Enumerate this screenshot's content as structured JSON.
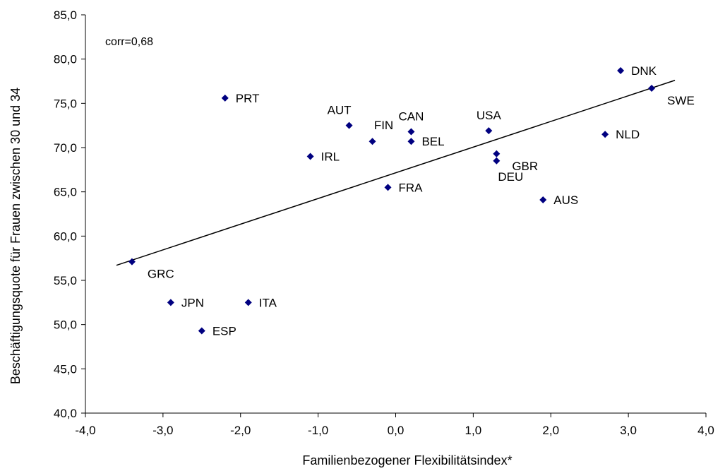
{
  "chart_data": {
    "type": "scatter",
    "xlabel": "Familienbezogener Flexibilitätsindex*",
    "ylabel": "Beschäftigungsquote für Frauen zwischen 30 und 34",
    "xlim": [
      -4.0,
      4.0
    ],
    "ylim": [
      40.0,
      85.0
    ],
    "x_ticks": [
      -4.0,
      -3.0,
      -2.0,
      -1.0,
      0.0,
      1.0,
      2.0,
      3.0,
      4.0
    ],
    "x_tick_labels": [
      "-4,0",
      "-3,0",
      "-2,0",
      "-1,0",
      "0,0",
      "1,0",
      "2,0",
      "3,0",
      "4,0"
    ],
    "y_ticks": [
      40.0,
      45.0,
      50.0,
      55.0,
      60.0,
      65.0,
      70.0,
      75.0,
      80.0,
      85.0
    ],
    "y_tick_labels": [
      "40,0",
      "45,0",
      "50,0",
      "55,0",
      "60,0",
      "65,0",
      "70,0",
      "75,0",
      "80,0",
      "85,0"
    ],
    "grid": false,
    "annotation": "corr=0,68",
    "marker_color": "#000080",
    "trendline": {
      "x": [
        -3.6,
        3.6
      ],
      "y": [
        56.7,
        77.6
      ]
    },
    "points": [
      {
        "label": "DNK",
        "x": 2.9,
        "y": 78.7,
        "label_pos": "right"
      },
      {
        "label": "SWE",
        "x": 3.3,
        "y": 76.7,
        "label_pos": "below-right"
      },
      {
        "label": "PRT",
        "x": -2.2,
        "y": 75.6,
        "label_pos": "right"
      },
      {
        "label": "AUT",
        "x": -0.6,
        "y": 72.5,
        "label_pos": "above-left"
      },
      {
        "label": "CAN",
        "x": 0.2,
        "y": 71.8,
        "label_pos": "above"
      },
      {
        "label": "USA",
        "x": 1.2,
        "y": 71.9,
        "label_pos": "above"
      },
      {
        "label": "FIN",
        "x": -0.3,
        "y": 70.7,
        "label_pos": "above-right"
      },
      {
        "label": "BEL",
        "x": 0.2,
        "y": 70.7,
        "label_pos": "right"
      },
      {
        "label": "NLD",
        "x": 2.7,
        "y": 71.5,
        "label_pos": "right"
      },
      {
        "label": "IRL",
        "x": -1.1,
        "y": 69.0,
        "label_pos": "right"
      },
      {
        "label": "GBR",
        "x": 1.3,
        "y": 69.3,
        "label_pos": "below-right"
      },
      {
        "label": "DEU",
        "x": 1.3,
        "y": 68.5,
        "label_pos": "below"
      },
      {
        "label": "FRA",
        "x": -0.1,
        "y": 65.5,
        "label_pos": "right"
      },
      {
        "label": "AUS",
        "x": 1.9,
        "y": 64.1,
        "label_pos": "right"
      },
      {
        "label": "GRC",
        "x": -3.4,
        "y": 57.1,
        "label_pos": "below-right"
      },
      {
        "label": "JPN",
        "x": -2.9,
        "y": 52.5,
        "label_pos": "right"
      },
      {
        "label": "ITA",
        "x": -1.9,
        "y": 52.5,
        "label_pos": "right"
      },
      {
        "label": "ESP",
        "x": -2.5,
        "y": 49.3,
        "label_pos": "right"
      }
    ]
  }
}
